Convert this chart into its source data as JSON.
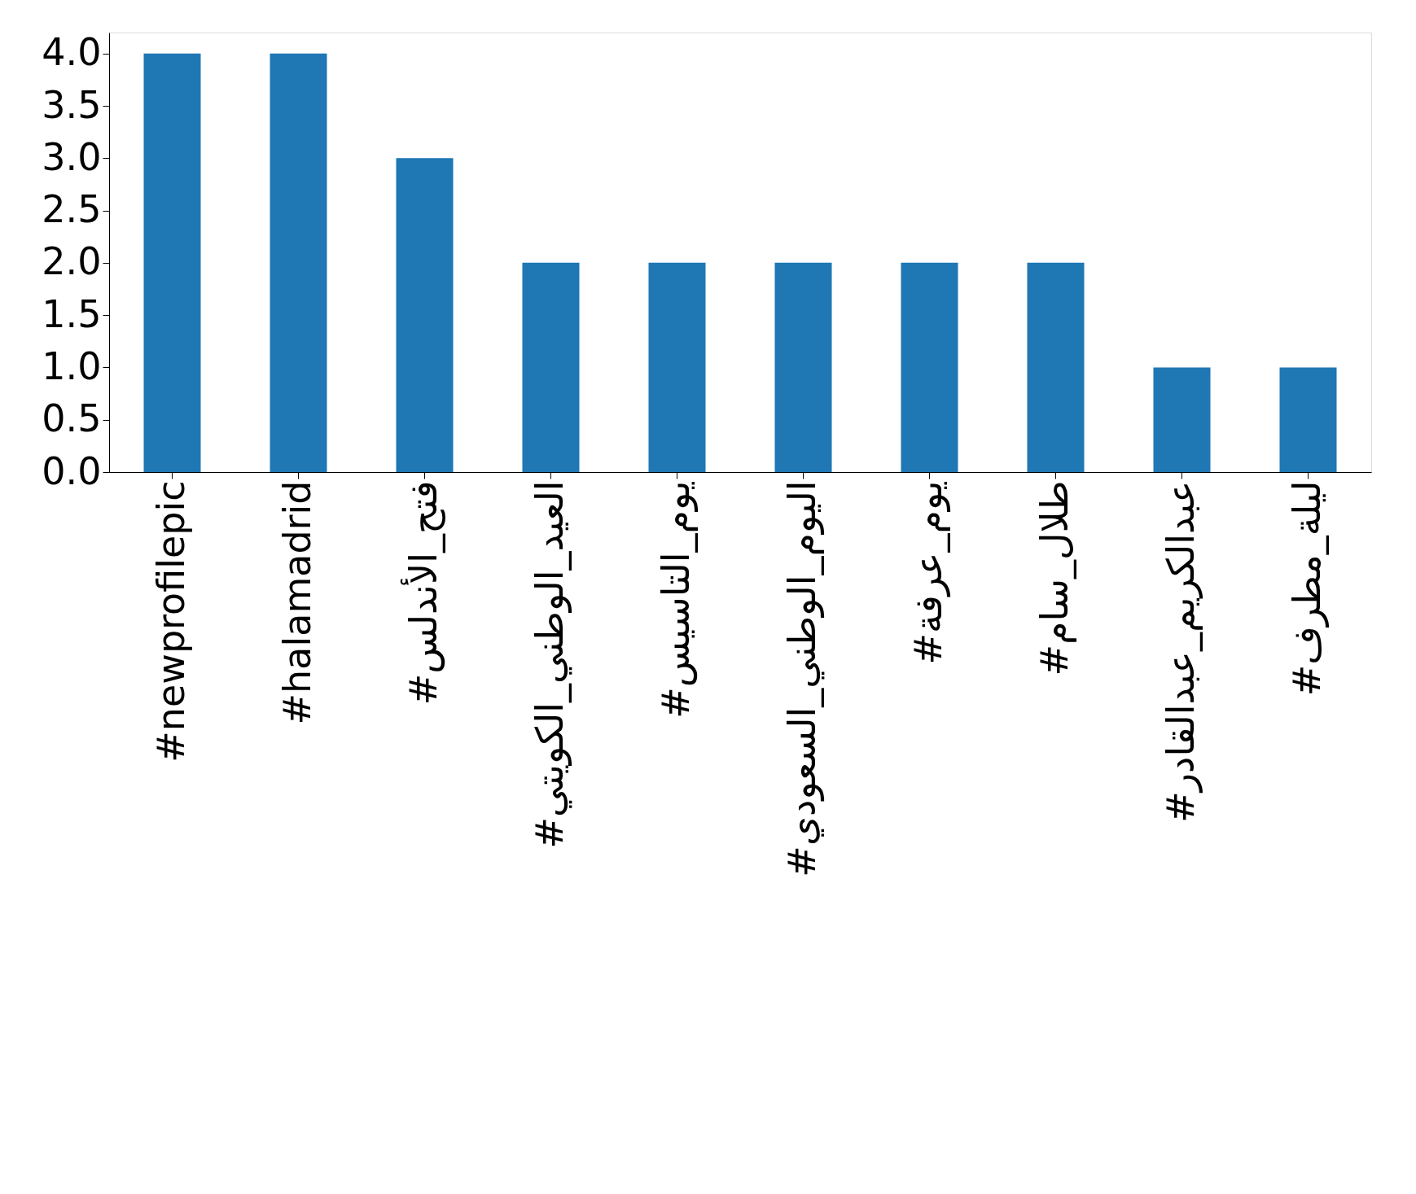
{
  "chart_data": {
    "type": "bar",
    "categories": [
      "#newprofilepic",
      "#halamadrid",
      "#فتح_الأندلس",
      "#العيد_الوطني_الكويتي",
      "#يوم_التاسيس",
      "#اليوم_الوطني_السعودي",
      "#يوم_عرفة",
      "#طلال_سام",
      "#عبدالكريم_عبدالقادر",
      "#ليلة_مطرف"
    ],
    "values": [
      4,
      4,
      3,
      2,
      2,
      2,
      2,
      2,
      1,
      1
    ],
    "color": "#1f77b4",
    "ylim": [
      0,
      4.2
    ],
    "yticks": [
      {
        "value": 0,
        "label": "0.0"
      },
      {
        "value": 0.5,
        "label": "0.5"
      },
      {
        "value": 1,
        "label": "1.0"
      },
      {
        "value": 1.5,
        "label": "1.5"
      },
      {
        "value": 2,
        "label": "2.0"
      },
      {
        "value": 2.5,
        "label": "2.5"
      },
      {
        "value": 3,
        "label": "3.0"
      },
      {
        "value": 3.5,
        "label": "3.5"
      },
      {
        "value": 4,
        "label": "4.0"
      }
    ],
    "grid": false
  }
}
